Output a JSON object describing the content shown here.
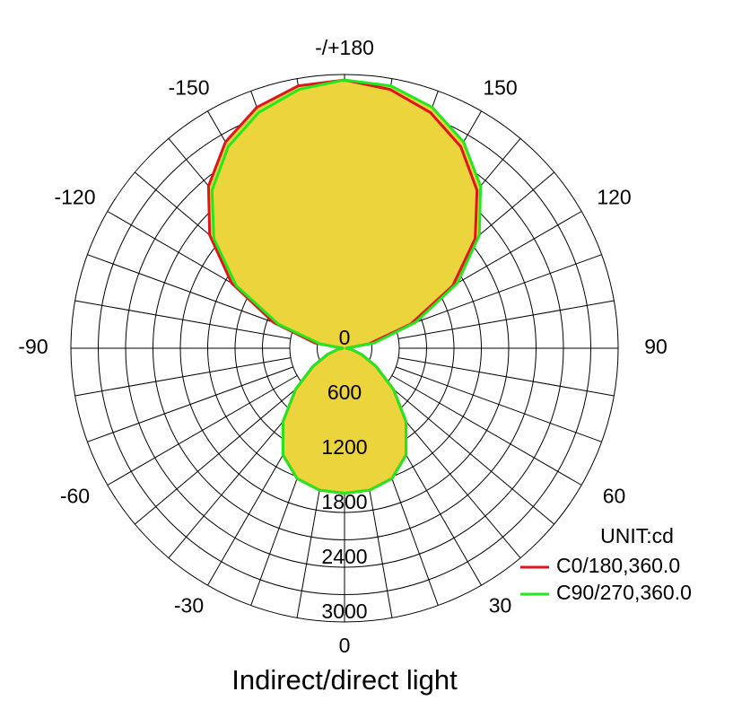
{
  "chart_data": {
    "type": "polar",
    "title": "Indirect/direct light",
    "unit_label": "UNIT:cd",
    "x": [
      -180,
      -170,
      -160,
      -150,
      -140,
      -130,
      -120,
      -110,
      -100,
      -90,
      -80,
      -70,
      -60,
      -50,
      -40,
      -30,
      -20,
      -10,
      0,
      10,
      20,
      30,
      40,
      50,
      60,
      70,
      80,
      90,
      100,
      110,
      120,
      130,
      140,
      150,
      160,
      170,
      180
    ],
    "series": [
      {
        "name": "C0/180,360.0",
        "color": "#e0141e",
        "values": [
          2940,
          2920,
          2810,
          2610,
          2320,
          1930,
          1430,
          830,
          330,
          20,
          80,
          200,
          400,
          700,
          1050,
          1350,
          1520,
          1580,
          1590,
          1580,
          1520,
          1350,
          1050,
          700,
          400,
          200,
          80,
          20,
          270,
          770,
          1370,
          1870,
          2260,
          2550,
          2750,
          2880,
          2940
        ]
      },
      {
        "name": "C90/270,360.0",
        "color": "#22e81e",
        "values": [
          2940,
          2880,
          2750,
          2550,
          2260,
          1870,
          1370,
          770,
          270,
          20,
          80,
          200,
          400,
          700,
          1050,
          1350,
          1520,
          1580,
          1590,
          1580,
          1520,
          1350,
          1050,
          700,
          400,
          200,
          80,
          20,
          330,
          830,
          1430,
          1930,
          2320,
          2610,
          2810,
          2920,
          2940
        ]
      }
    ],
    "fill_color": "#ecd43c",
    "rlim": [
      0,
      3000
    ],
    "rticks": [
      0,
      600,
      1200,
      1800,
      2400,
      3000
    ],
    "angle_ticks": [
      {
        "value": 180,
        "label": "-/+180"
      },
      150,
      120,
      90,
      60,
      30,
      0,
      -30,
      -60,
      -90,
      -120,
      -150
    ]
  }
}
